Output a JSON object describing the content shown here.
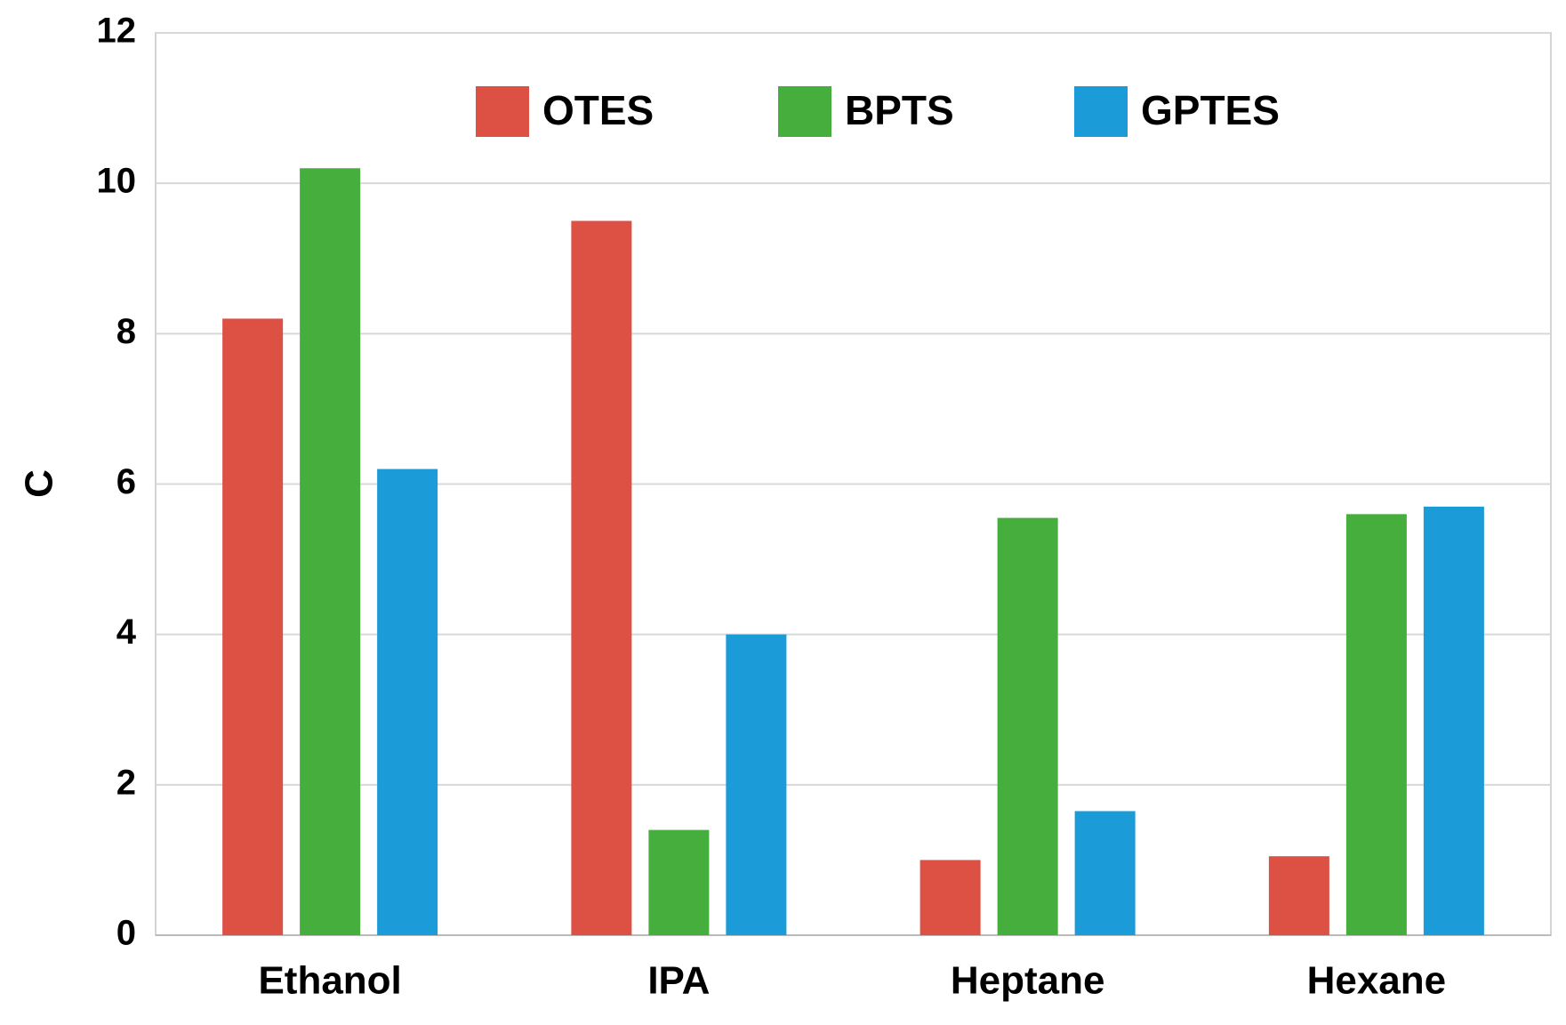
{
  "chart_data": {
    "type": "bar",
    "y_label": "C",
    "categories": [
      "Ethanol",
      "IPA",
      "Heptane",
      "Hexane"
    ],
    "series": [
      {
        "name": "OTES",
        "color": "#dd5044",
        "values": [
          8.2,
          9.5,
          1.0,
          1.05
        ]
      },
      {
        "name": "BPTS",
        "color": "#46ae3c",
        "values": [
          10.2,
          1.4,
          5.55,
          5.6
        ]
      },
      {
        "name": "GPTES",
        "color": "#1b9bd7",
        "values": [
          6.2,
          4.0,
          1.65,
          5.7
        ]
      }
    ],
    "ylim": [
      0,
      12
    ],
    "yticks": [
      0,
      2,
      4,
      6,
      8,
      10,
      12
    ],
    "grid": true,
    "legend": "top"
  }
}
